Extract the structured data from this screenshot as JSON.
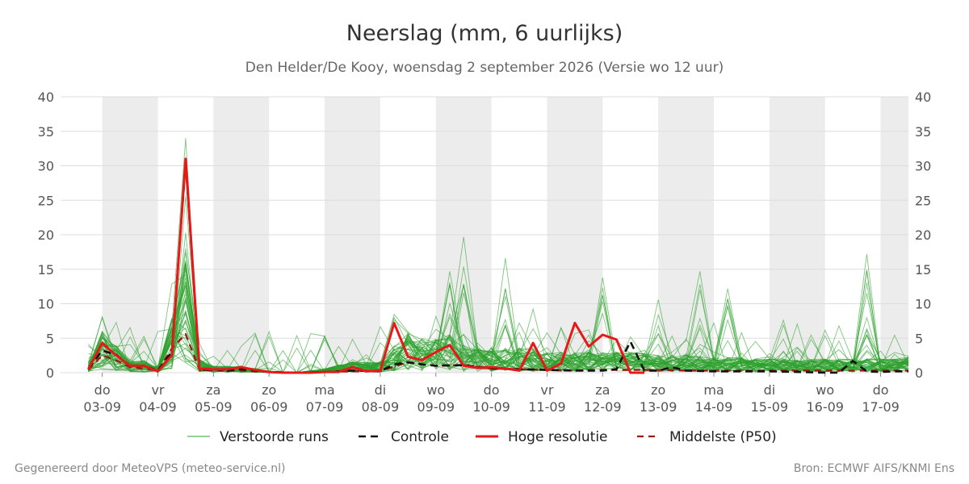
{
  "title": "Neerslag (mm, 6 uurlijks)",
  "subtitle": "Den Helder/De Kooy, woensdag  2 september 2026 (Versie wo 12 uur)",
  "footer": {
    "left": "Gegenereerd door MeteoVPS (meteo-service.nl)",
    "right": "Bron: ECMWF AIFS/KNMI Ens"
  },
  "colors": {
    "ensemble": "#2ca02c",
    "control": "#111111",
    "high_res": "#e8171a",
    "median": "#9b1a12",
    "night_band": "#ececec",
    "grid": "#dddddd"
  },
  "chart_data": {
    "type": "line",
    "title": "Neerslag (mm, 6 uurlijks)",
    "subtitle": "Den Helder/De Kooy, woensdag  2 september 2026 (Versie wo 12 uur)",
    "xlabel": "",
    "ylabel": "",
    "ylim": [
      0,
      40
    ],
    "yticks": [
      0,
      5,
      10,
      15,
      20,
      25,
      30,
      35,
      40
    ],
    "y_axis_both_sides": true,
    "grid": true,
    "xlim": [
      -0.75,
      14.5
    ],
    "x_unit": "days since do 03-09 00 UTC",
    "x_ticks": [
      {
        "day": "do",
        "date": "03-09"
      },
      {
        "day": "vr",
        "date": "04-09"
      },
      {
        "day": "za",
        "date": "05-09"
      },
      {
        "day": "zo",
        "date": "06-09"
      },
      {
        "day": "ma",
        "date": "07-09"
      },
      {
        "day": "di",
        "date": "08-09"
      },
      {
        "day": "wo",
        "date": "09-09"
      },
      {
        "day": "do",
        "date": "10-09"
      },
      {
        "day": "vr",
        "date": "11-09"
      },
      {
        "day": "za",
        "date": "12-09"
      },
      {
        "day": "zo",
        "date": "13-09"
      },
      {
        "day": "ma",
        "date": "14-09"
      },
      {
        "day": "di",
        "date": "15-09"
      },
      {
        "day": "wo",
        "date": "16-09"
      },
      {
        "day": "do",
        "date": "17-09"
      }
    ],
    "night_bands": [
      [
        0,
        1
      ],
      [
        2,
        3
      ],
      [
        4,
        5
      ],
      [
        6,
        7
      ],
      [
        8,
        9
      ],
      [
        10,
        11
      ],
      [
        12,
        13
      ],
      [
        14,
        14.5
      ]
    ],
    "legend_position": "bottom",
    "legend": [
      "Verstoorde runs",
      "Controle",
      "Hoge resolutie",
      "Middelste (P50)"
    ],
    "series": [
      {
        "name": "Hoge resolutie",
        "style": "solid-thick",
        "x": [
          -0.25,
          0,
          0.25,
          0.5,
          0.75,
          1.0,
          1.25,
          1.5,
          1.75,
          2.0,
          2.25,
          2.5,
          2.75,
          3.0,
          3.25,
          3.5,
          3.75,
          4.0,
          4.25,
          4.5,
          4.75,
          5.0,
          5.25,
          5.5,
          5.75,
          6.0,
          6.25,
          6.5,
          6.75,
          7.0,
          7.25,
          7.5,
          7.75,
          8.0,
          8.25,
          8.5,
          8.75,
          9.0,
          9.25,
          9.5,
          9.75
        ],
        "values": [
          0.5,
          4.3,
          2.5,
          1.0,
          1.0,
          0.2,
          2.5,
          31.0,
          0.6,
          0.5,
          0.5,
          0.8,
          0.4,
          0.1,
          0.0,
          0.0,
          0.0,
          0.1,
          0.1,
          0.8,
          0.2,
          0.3,
          7.2,
          2.3,
          1.8,
          3.0,
          4.0,
          1.0,
          0.7,
          0.8,
          0.6,
          0.3,
          4.3,
          0.3,
          1.3,
          7.2,
          3.8,
          5.5,
          4.8,
          0.0,
          0.0
        ]
      },
      {
        "name": "Controle",
        "style": "dashed",
        "x": [
          -0.25,
          0,
          0.25,
          0.5,
          0.75,
          1.0,
          1.25,
          1.5,
          1.75,
          2.0,
          2.25,
          2.5,
          2.75,
          3.0,
          3.5,
          4.0,
          4.5,
          5.0,
          5.25,
          5.5,
          5.75,
          6.0,
          6.5,
          7.0,
          7.5,
          8.0,
          8.5,
          9.0,
          9.25,
          9.5,
          9.75,
          10.0,
          10.25,
          10.5,
          11.0,
          11.5,
          12.0,
          12.5,
          13.0,
          13.25,
          13.5,
          13.75,
          14.0,
          14.25,
          14.5
        ],
        "values": [
          0.6,
          3.2,
          2.6,
          1.0,
          1.0,
          0.3,
          3.0,
          30.5,
          0.4,
          0.5,
          0.3,
          0.5,
          0.3,
          0.1,
          0.0,
          0.1,
          0.3,
          0.2,
          1.2,
          1.5,
          1.2,
          1.0,
          1.1,
          0.6,
          0.5,
          0.4,
          0.3,
          0.3,
          0.5,
          4.5,
          0.3,
          0.3,
          0.8,
          0.3,
          0.2,
          0.2,
          0.2,
          0.1,
          0.0,
          0.0,
          1.7,
          0.2,
          0.1,
          0.2,
          0.2
        ]
      },
      {
        "name": "Middelste (P50)",
        "style": "dashed",
        "x": [
          -0.25,
          0,
          0.25,
          0.5,
          0.75,
          1.0,
          1.25,
          1.5,
          1.75,
          2.0,
          2.5,
          3.0,
          3.5,
          4.0,
          4.5,
          5.0,
          5.25,
          5.5,
          5.75,
          6.0,
          6.5,
          7.0,
          7.5,
          8.0,
          8.5,
          9.0,
          9.5,
          10.0,
          10.5,
          11.0,
          11.5,
          12.0,
          12.5,
          13.0,
          13.5,
          14.0,
          14.5
        ],
        "values": [
          0.4,
          2.5,
          1.8,
          0.8,
          0.6,
          0.3,
          3.5,
          5.6,
          0.4,
          0.3,
          0.3,
          0.1,
          0.0,
          0.1,
          0.2,
          0.2,
          0.9,
          1.5,
          1.2,
          1.0,
          1.1,
          0.6,
          0.5,
          0.4,
          0.3,
          0.4,
          0.4,
          0.4,
          0.3,
          0.3,
          0.3,
          0.3,
          0.3,
          0.3,
          0.3,
          0.3,
          0.3
        ]
      },
      {
        "name": "Verstoorde runs",
        "style": "ensemble",
        "members": 50,
        "baseline_x": [
          -0.25,
          0,
          0.25,
          0.5,
          0.75,
          1.0,
          1.25,
          1.5,
          1.75,
          2.0,
          2.5,
          3.0,
          3.5,
          4.0,
          4.5,
          5.0,
          5.25,
          5.5,
          5.75,
          6.0,
          6.25,
          6.5,
          6.75,
          7.0,
          7.25,
          7.5,
          7.75,
          8.0,
          8.25,
          8.5,
          8.75,
          9.0,
          9.25,
          9.5,
          9.75,
          10.0,
          10.25,
          10.5,
          10.75,
          11.0,
          11.25,
          11.5,
          11.75,
          12.0,
          12.25,
          12.5,
          12.75,
          13.0,
          13.25,
          13.5,
          13.75,
          14.0,
          14.25,
          14.5
        ],
        "baseline_values": [
          0.8,
          3.0,
          2.0,
          1.0,
          0.9,
          0.5,
          4.0,
          8.0,
          1.0,
          0.5,
          0.5,
          0.1,
          0.0,
          0.3,
          0.8,
          0.8,
          2.0,
          3.0,
          2.5,
          2.5,
          2.8,
          2.0,
          1.8,
          1.8,
          2.0,
          1.8,
          1.8,
          1.5,
          1.5,
          1.5,
          1.5,
          1.5,
          1.5,
          1.5,
          1.4,
          1.3,
          1.3,
          1.3,
          1.2,
          1.1,
          1.1,
          1.1,
          1.0,
          1.0,
          1.0,
          1.0,
          1.0,
          1.0,
          1.0,
          1.0,
          1.0,
          1.0,
          1.0,
          1.2
        ],
        "max_envelope": [
          {
            "x": 1.5,
            "y": 34.0
          },
          {
            "x": 6.5,
            "y": 19.7
          },
          {
            "x": 13.75,
            "y": 17.2
          },
          {
            "x": 7.25,
            "y": 16.6
          },
          {
            "x": 6.25,
            "y": 14.7
          },
          {
            "x": 10.75,
            "y": 14.7
          },
          {
            "x": 9.0,
            "y": 13.8
          },
          {
            "x": 11.25,
            "y": 12.2
          },
          {
            "x": 10.0,
            "y": 10.6
          }
        ]
      }
    ]
  }
}
